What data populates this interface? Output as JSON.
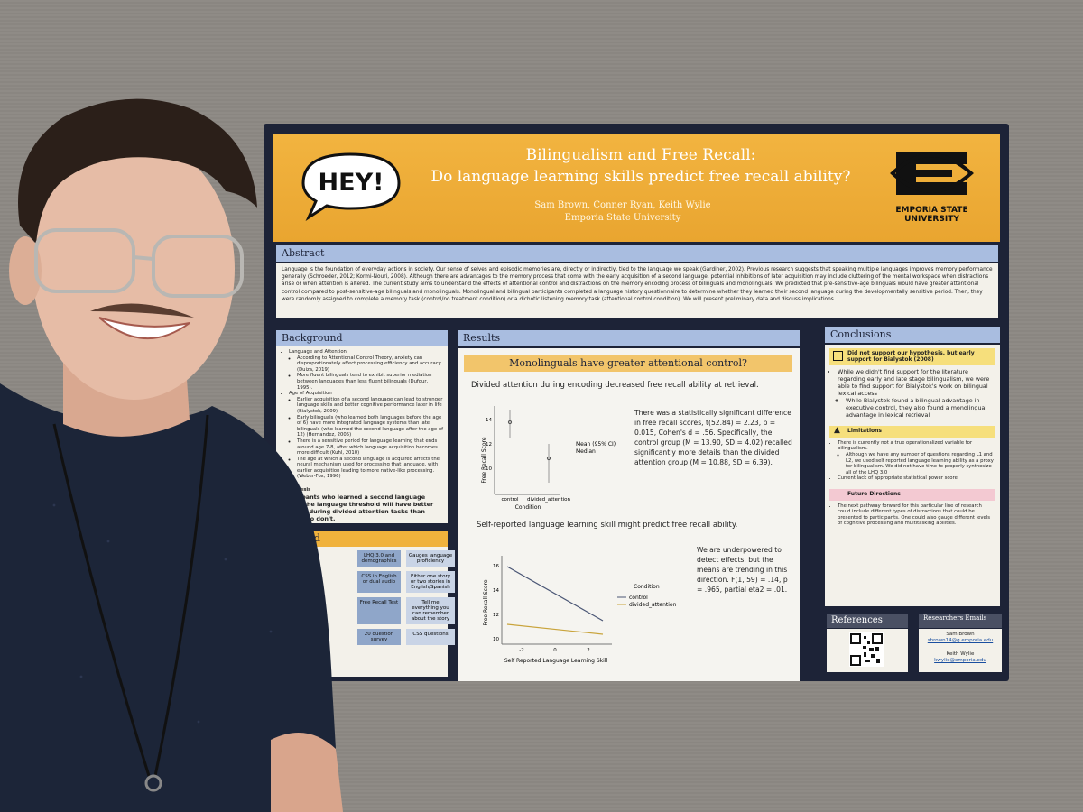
{
  "poster": {
    "hey": "HEY!",
    "title": "Bilingualism and Free Recall:",
    "subtitle": "Do language learning skills predict free recall ability?",
    "authors": "Sam Brown, Conner Ryan, Keith Wylie",
    "affiliation": "Emporia State University",
    "logo_text": "EMPORIA STATE UNIVERSITY",
    "abstract": {
      "heading": "Abstract",
      "text": "Language is the foundation of everyday actions in society. Our sense of selves and episodic memories are, directly or indirectly, tied to the language we speak (Gardiner, 2002). Previous research suggests that speaking multiple languages improves memory performance generally (Schroeder, 2012; Kormi-Nouri, 2008). Although there are advantages to the memory process that come with the early acquisition of a second language, potential inhibitions of later acquisition may include cluttering of the mental workspace when distractions arise or when attention is altered. The current study aims to understand the effects of attentional control and distractions on the memory encoding process of bilinguals and monolinguals. We predicted that pre-sensitive-age bilinguals would have greater attentional control compared to post-sensitive-age bilinguals and monolinguals. Monolingual and bilingual participants completed a language history questionnaire to determine whether they learned their second language during the developmentally sensitive period. Then, they were randomly assigned to complete a memory task (control/no treatment condition) or a dichotic listening memory task (attentional control condition). We will present preliminary data and discuss implications."
    },
    "background": {
      "heading": "Background",
      "topic1": "Language and Attention",
      "topic1_items": [
        "According to Attentional Control Theory, anxiety can disproportionately affect processing efficiency and accuracy. (Duiza, 2019)",
        "More fluent bilinguals tend to exhibit superior mediation between languages than less fluent bilinguals (Dufour, 1995)."
      ],
      "topic2": "Age of Acquisition",
      "topic2_items": [
        "Earlier acquisition of a second language can lead to stronger language skills and better cognitive performance later in life (Bialystok, 2009)",
        "Early bilinguals (who learned both languages before the age of 6) have more integrated language systems than late bilinguals (who learned the second language after the age of 12) (Hernandez, 2005)",
        "There is a sensitive period for language learning that ends around age 7-8, after which language acquisition becomes more difficult (Kuhl, 2010)",
        "The age at which a second language is acquired affects the neural mechanism used for processing that language, with earlier acquisition leading to more native-like processing. (Weber-Fox, 1996)"
      ],
      "hypothesis_label": "Hypothesis",
      "hypothesis": "Participants who learned a second language before the language threshold will have better memory during divided attention tasks than those who don't."
    },
    "method": {
      "heading": "Method",
      "steps": [
        [
          "LHQ 3.0 and demographics",
          "Gauges language proficiency"
        ],
        [
          "CSS in English or dual audio",
          "Either one story or two stories in English/Spanish"
        ],
        [
          "Free Recall Test",
          "Tell me everything you can remember about the story"
        ],
        [
          "20 question survey",
          "CSS questions"
        ]
      ]
    },
    "results": {
      "heading": "Results",
      "banner": "Monolinguals have greater attentional control?",
      "finding1": "Divided attention during encoding decreased free recall ability at retrieval.",
      "stats1": "There was a statistically significant difference in free recall scores, t(52.84) = 2.23, p = 0.015, Cohen's d = .56. Specifically, the control group (M = 13.90, SD = 4.02) recalled significantly more details than the divided attention group (M = 10.88, SD = 6.39).",
      "plot1": {
        "ylabel": "Free Recall Score",
        "yticks": [
          "14",
          "12",
          "10"
        ],
        "xticks": [
          "control",
          "divided_attention"
        ],
        "xlabel": "Condition",
        "legend": [
          "Mean (95% CI)",
          "Median"
        ]
      },
      "finding2": "Self-reported language learning skill might predict free recall ability.",
      "stats2": "We are underpowered to detect effects, but the means are trending in this direction. F(1, 59) = .14, p = .965, partial eta2 = .01.",
      "plot2": {
        "ylabel": "Free Recall Score",
        "yticks": [
          "16",
          "14",
          "12",
          "10"
        ],
        "xticks": [
          "-2",
          "0",
          "2"
        ],
        "xlabel": "Self Reported Language Learning Skill",
        "legend_title": "Condition",
        "legend": [
          "control",
          "divided_attention"
        ]
      }
    },
    "conclusions": {
      "heading": "Conclusions",
      "box1": "Did not support our hypothesis, but early support for Bialystok (2008)",
      "box1_items": [
        "While we didn't find support for the literature regarding early and late stage bilingualism, we were able to find support for Bialystok's work on bilingual lexical access",
        "While Bialystok found a bilingual advantage in executive control, they also found a monolingual advantage in lexical retrieval"
      ],
      "box2": "Limitations",
      "box2_items": [
        "There is currently not a true operationalized variable for bilingualism.",
        "Although we have any number of questions regarding L1 and L2, we used self reported language learning ability as a proxy for bilingualism. We did not have time to properly synthesize all of the LHQ 3.0",
        "Current lack of appropriate statistical power score"
      ],
      "box3": "Future Directions",
      "box3_items": [
        "The next pathway forward for this particular line of research could include different types of distractions that could be presented to participants. One could also gauge different levels of cognitive processing and multitasking abilities."
      ]
    },
    "references": {
      "heading": "References"
    },
    "researchers": {
      "heading": "Researchers Emails",
      "name1": "Sam Brown",
      "email1": "sbrown14@g.emporia.edu",
      "name2": "Keith Wylie",
      "email2": "kwylie@emporia.edu"
    }
  }
}
